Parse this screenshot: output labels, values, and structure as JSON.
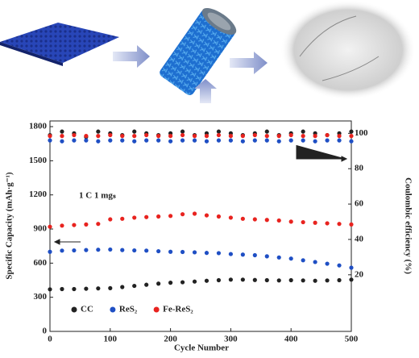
{
  "chart_data": {
    "type": "scatter",
    "xlabel": "Cycle Number",
    "ylabel": "Specific Capacity (mAh·g⁻¹)",
    "y2label": "Coulombic efficiency (%)",
    "annotation": "1 C  1 mgₛ",
    "xlim": [
      0,
      500
    ],
    "xticks": [
      0,
      100,
      200,
      300,
      400,
      500
    ],
    "ylim": [
      0,
      1850
    ],
    "yticks": [
      0,
      300,
      600,
      900,
      1200,
      1500,
      1800
    ],
    "y2lim": [
      -12,
      107
    ],
    "y2ticks": [
      20,
      40,
      60,
      80,
      100
    ],
    "x": [
      0,
      20,
      40,
      60,
      80,
      100,
      120,
      140,
      160,
      180,
      200,
      220,
      240,
      260,
      280,
      300,
      320,
      340,
      360,
      380,
      400,
      420,
      440,
      460,
      480,
      500
    ],
    "series": [
      {
        "name": "CC",
        "color": "#222222",
        "values": [
          370,
          372,
          372,
          375,
          378,
          380,
          390,
          400,
          410,
          420,
          428,
          432,
          438,
          445,
          450,
          455,
          455,
          452,
          450,
          448,
          450,
          448,
          445,
          448,
          450,
          455
        ]
      },
      {
        "name": "ReS₂",
        "color": "#1f4fc4",
        "values": [
          700,
          710,
          712,
          715,
          718,
          720,
          715,
          712,
          710,
          705,
          700,
          698,
          695,
          690,
          688,
          680,
          675,
          670,
          660,
          650,
          640,
          625,
          610,
          595,
          580,
          560
        ]
      },
      {
        "name": "Fe-ReS₂",
        "color": "#e8231f",
        "values": [
          920,
          930,
          935,
          940,
          945,
          985,
          990,
          1000,
          1005,
          1010,
          1015,
          1030,
          1035,
          1020,
          1010,
          1000,
          990,
          985,
          980,
          975,
          965,
          960,
          955,
          950,
          945,
          940
        ]
      },
      {
        "color": "#222222",
        "axis": "y2",
        "values": [
          99,
          101,
          100,
          98,
          101,
          100,
          99,
          101,
          100,
          99,
          100,
          101,
          99,
          100,
          101,
          100,
          99,
          100,
          101,
          99,
          100,
          101,
          100,
          99,
          100,
          101
        ]
      },
      {
        "color": "#1f4fc4",
        "axis": "y2",
        "values": [
          96,
          95.5,
          96,
          96,
          95.5,
          96,
          96,
          95.5,
          96,
          96,
          95.5,
          96,
          96,
          95.5,
          96,
          96,
          95.5,
          96,
          96,
          95.5,
          96,
          96,
          95.5,
          96,
          96,
          95.5
        ]
      },
      {
        "color": "#e8231f",
        "axis": "y2",
        "values": [
          98.5,
          98.5,
          99,
          98.5,
          98.5,
          99,
          98.5,
          98.5,
          99,
          98.5,
          98.5,
          99,
          98.5,
          98.5,
          99,
          98.5,
          98.5,
          99,
          98.5,
          98.5,
          99,
          98.5,
          98.5,
          99,
          98.5,
          98.5
        ]
      }
    ]
  }
}
